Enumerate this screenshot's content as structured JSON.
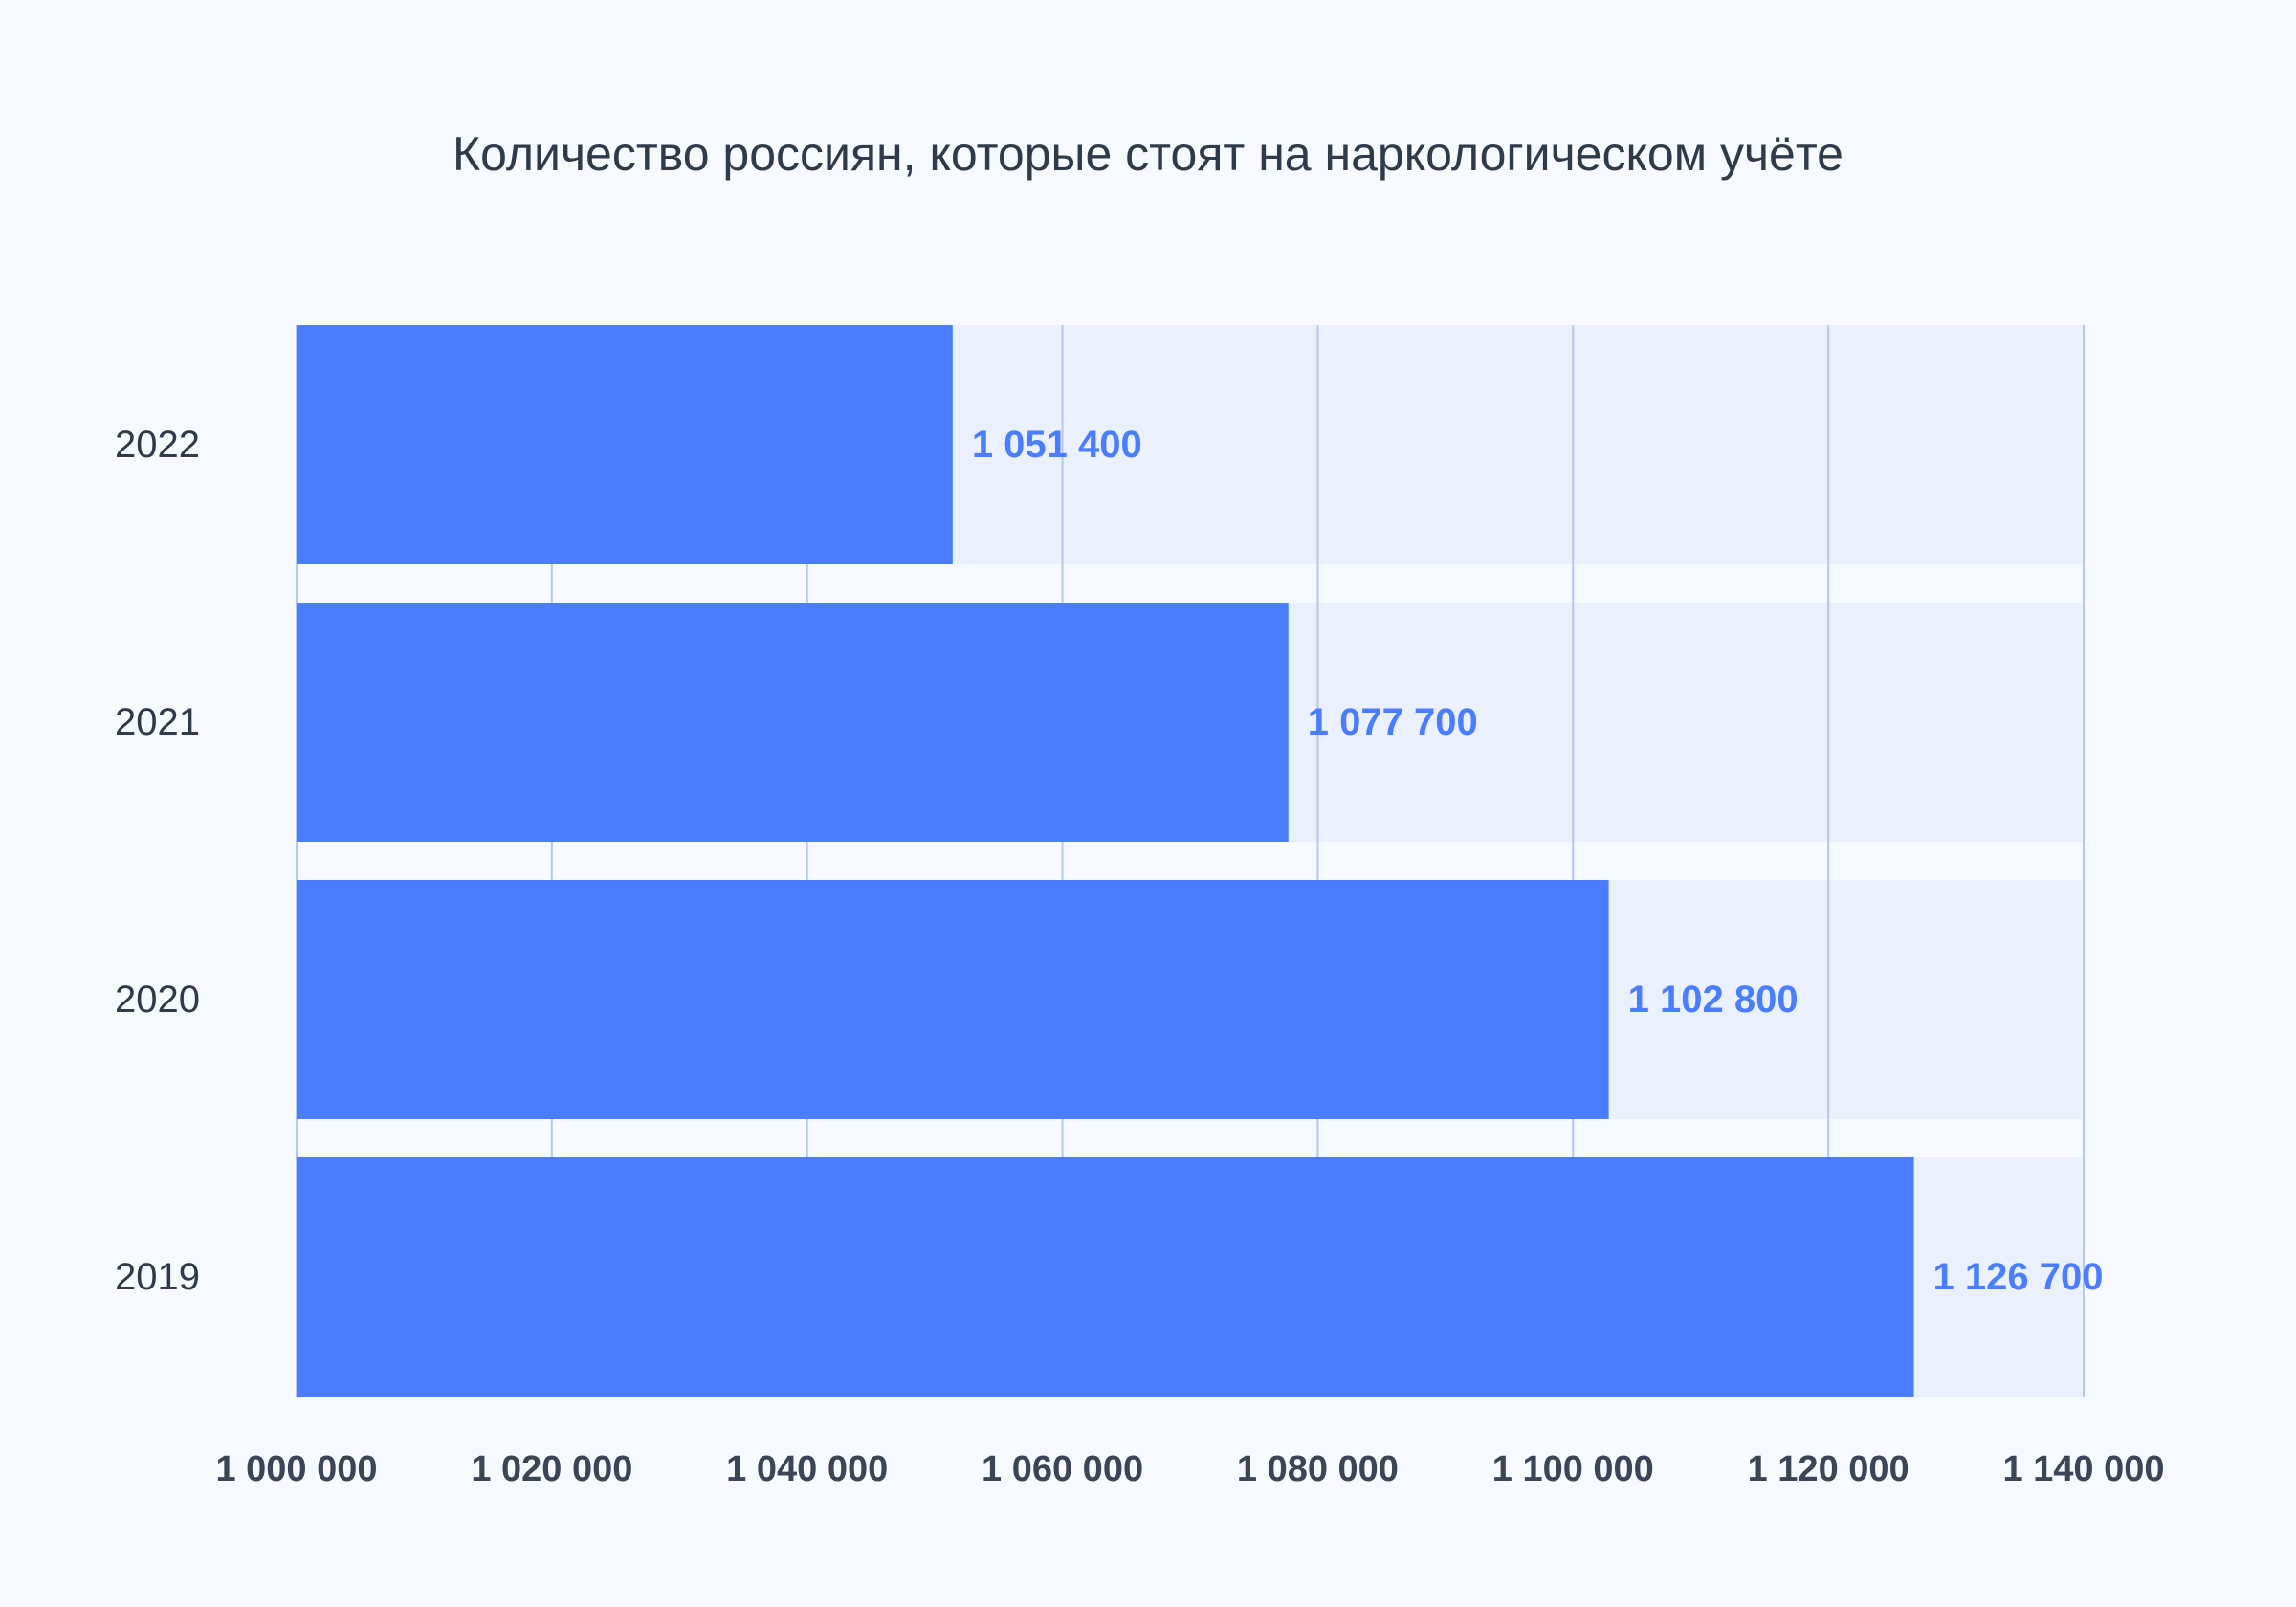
{
  "colors": {
    "background": "#f6f9fe",
    "bar": "#4a7dff",
    "track": "#ebf1fc",
    "grid": "#b7c6ec",
    "value_label": "#4a7dff",
    "text": "#2f3a4a"
  },
  "chart_data": {
    "type": "bar",
    "orientation": "horizontal",
    "title": "Количество россиян, которые стоят на наркологическом учёте",
    "categories": [
      "2022",
      "2021",
      "2020",
      "2019"
    ],
    "values": [
      1051400,
      1077700,
      1102800,
      1126700
    ],
    "value_labels": [
      "1 051 400",
      "1 077 700",
      "1 102 800",
      "1 126 700"
    ],
    "xlim": [
      1000000,
      1140000
    ],
    "xticks": [
      1000000,
      1020000,
      1040000,
      1060000,
      1080000,
      1100000,
      1120000,
      1140000
    ],
    "xtick_labels": [
      "1 000 000",
      "1 020 000",
      "1 040 000",
      "1 060 000",
      "1 080 000",
      "1 100 000",
      "1 120 000",
      "1 140 000"
    ],
    "xlabel": "",
    "ylabel": "",
    "grid": "vertical",
    "legend": "none"
  }
}
